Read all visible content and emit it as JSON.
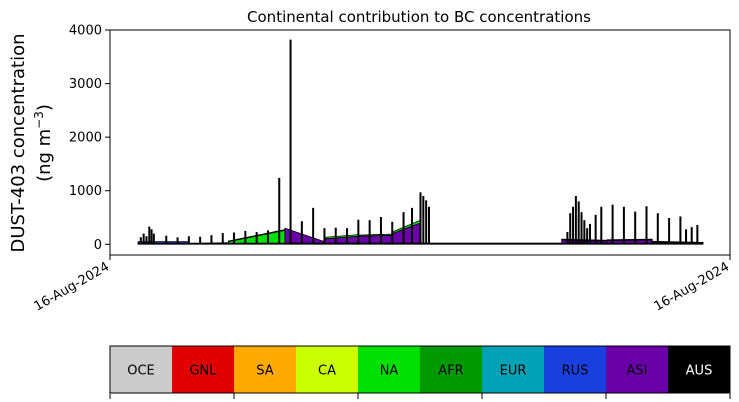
{
  "chart_data": {
    "type": "area",
    "title": "Continental contribution to BC concentrations",
    "ylabel_line1": "DUST-403 concentration",
    "ylabel_line2_prefix": "(ng m",
    "ylabel_line2_sup": "−3",
    "ylabel_line2_suffix": ")",
    "ylim": [
      -200,
      4000
    ],
    "yticks": [
      0,
      1000,
      2000,
      3000,
      4000
    ],
    "x_tick_labels": [
      "16-Aug-2024",
      "16-Aug-2024"
    ],
    "xlim": [
      0,
      1
    ],
    "grid": false,
    "stack_order": [
      "ASI",
      "NA",
      "CA",
      "RUS"
    ],
    "series_colors": {
      "ASI": "#6a00a8",
      "NA": "#00e000",
      "CA": "#ccff00",
      "RUS": "#1a3fe0"
    },
    "stacked_segments": [
      {
        "x": [
          0.0,
          0.09
        ],
        "ASI": [
          20,
          20
        ],
        "NA": [
          0,
          0
        ],
        "CA": [
          0,
          0
        ],
        "RUS": [
          30,
          30
        ]
      },
      {
        "x": [
          0.09,
          0.16
        ],
        "ASI": [
          10,
          15
        ],
        "NA": [
          0,
          10
        ],
        "CA": [
          0,
          0
        ],
        "RUS": [
          5,
          5
        ]
      },
      {
        "x": [
          0.16,
          0.26
        ],
        "ASI": [
          10,
          20
        ],
        "NA": [
          40,
          240
        ],
        "CA": [
          5,
          10
        ],
        "RUS": [
          5,
          5
        ]
      },
      {
        "x": [
          0.26,
          0.33
        ],
        "ASI": [
          300,
          50
        ],
        "NA": [
          0,
          0
        ],
        "CA": [
          0,
          0
        ],
        "RUS": [
          0,
          0
        ]
      },
      {
        "x": [
          0.33,
          0.39
        ],
        "ASI": [
          100,
          150
        ],
        "NA": [
          30,
          30
        ],
        "CA": [
          0,
          0
        ],
        "RUS": [
          0,
          0
        ]
      },
      {
        "x": [
          0.39,
          0.45
        ],
        "ASI": [
          150,
          170
        ],
        "NA": [
          20,
          20
        ],
        "CA": [
          0,
          0
        ],
        "RUS": [
          0,
          0
        ]
      },
      {
        "x": [
          0.45,
          0.5
        ],
        "ASI": [
          200,
          400
        ],
        "NA": [
          30,
          50
        ],
        "CA": [
          0,
          0
        ],
        "RUS": [
          0,
          0
        ]
      },
      {
        "x": [
          0.5,
          0.75
        ],
        "ASI": [
          0,
          0
        ],
        "NA": [
          0,
          0
        ],
        "CA": [
          20,
          20
        ],
        "RUS": [
          0,
          0
        ]
      },
      {
        "x": [
          0.75,
          0.83
        ],
        "ASI": [
          80,
          60
        ],
        "NA": [
          10,
          10
        ],
        "CA": [
          0,
          0
        ],
        "RUS": [
          5,
          5
        ]
      },
      {
        "x": [
          0.83,
          0.91
        ],
        "ASI": [
          70,
          80
        ],
        "NA": [
          10,
          10
        ],
        "CA": [
          0,
          0
        ],
        "RUS": [
          5,
          5
        ]
      },
      {
        "x": [
          0.91,
          1.0
        ],
        "ASI": [
          40,
          20
        ],
        "NA": [
          10,
          10
        ],
        "CA": [
          5,
          5
        ],
        "RUS": [
          0,
          0
        ]
      }
    ],
    "black_spikes": [
      [
        0.005,
        130
      ],
      [
        0.01,
        200
      ],
      [
        0.015,
        150
      ],
      [
        0.02,
        330
      ],
      [
        0.024,
        280
      ],
      [
        0.028,
        200
      ],
      [
        0.05,
        160
      ],
      [
        0.07,
        130
      ],
      [
        0.09,
        150
      ],
      [
        0.11,
        140
      ],
      [
        0.13,
        170
      ],
      [
        0.15,
        210
      ],
      [
        0.17,
        220
      ],
      [
        0.19,
        250
      ],
      [
        0.21,
        230
      ],
      [
        0.23,
        260
      ],
      [
        0.25,
        1240
      ],
      [
        0.27,
        3820
      ],
      [
        0.29,
        430
      ],
      [
        0.31,
        680
      ],
      [
        0.33,
        300
      ],
      [
        0.35,
        310
      ],
      [
        0.37,
        300
      ],
      [
        0.39,
        460
      ],
      [
        0.41,
        450
      ],
      [
        0.43,
        510
      ],
      [
        0.45,
        420
      ],
      [
        0.47,
        600
      ],
      [
        0.485,
        680
      ],
      [
        0.5,
        970
      ],
      [
        0.505,
        900
      ],
      [
        0.51,
        820
      ],
      [
        0.515,
        700
      ],
      [
        0.76,
        230
      ],
      [
        0.765,
        580
      ],
      [
        0.77,
        700
      ],
      [
        0.775,
        900
      ],
      [
        0.78,
        800
      ],
      [
        0.785,
        600
      ],
      [
        0.79,
        450
      ],
      [
        0.795,
        300
      ],
      [
        0.8,
        380
      ],
      [
        0.81,
        550
      ],
      [
        0.82,
        700
      ],
      [
        0.84,
        740
      ],
      [
        0.86,
        700
      ],
      [
        0.88,
        610
      ],
      [
        0.9,
        710
      ],
      [
        0.92,
        580
      ],
      [
        0.94,
        490
      ],
      [
        0.96,
        520
      ],
      [
        0.97,
        280
      ],
      [
        0.98,
        320
      ],
      [
        0.99,
        360
      ]
    ],
    "black_baseline": 15
  },
  "legend": {
    "labels": [
      "OCE",
      "GNL",
      "SA",
      "CA",
      "NA",
      "AFR",
      "EUR",
      "RUS",
      "ASI",
      "AUS"
    ],
    "colors": [
      "#cccccc",
      "#e00000",
      "#ffaa00",
      "#ccff00",
      "#00e000",
      "#009900",
      "#00a3b5",
      "#1a3fe0",
      "#6a00a8",
      "#000000"
    ],
    "text_colors": [
      "#000000",
      "#000000",
      "#000000",
      "#000000",
      "#000000",
      "#000000",
      "#000000",
      "#000000",
      "#000000",
      "#ffffff"
    ]
  }
}
